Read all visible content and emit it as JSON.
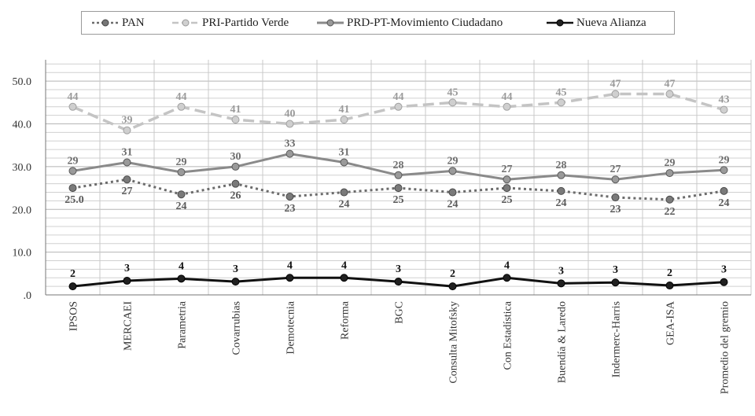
{
  "chart_data": {
    "type": "line",
    "title": "",
    "xlabel": "",
    "ylabel": "",
    "ylim": [
      0,
      55
    ],
    "yticks": [
      ".0",
      "10.0",
      "20.0",
      "30.0",
      "40.0",
      "50.0"
    ],
    "grid": true,
    "legend_position": "top",
    "categories": [
      "IPSOS",
      "MERCAEI",
      "Parametria",
      "Covarrubias",
      "Demotecnia",
      "Reforma",
      "BGC",
      "Consulta Mitofsky",
      "Con Estadística",
      "Buendía & Laredo",
      "Indermerc-Harris",
      "GEA-ISA",
      "Promedio del gremio"
    ],
    "series": [
      {
        "name": "PAN",
        "style": "dotted",
        "color": "#6b6b6b",
        "values": [
          25,
          27,
          23.5,
          26,
          23,
          24,
          25,
          24,
          25,
          24.3,
          22.8,
          22.3,
          24.3
        ],
        "labels": [
          "25.0",
          "27",
          "24",
          "26",
          "23",
          "24",
          "25",
          "24",
          "25",
          "24",
          "23",
          "22",
          "24"
        ]
      },
      {
        "name": "PRI-Partido Verde",
        "style": "dashed",
        "color": "#c4c4c4",
        "values": [
          44,
          38.5,
          44,
          41,
          40,
          41,
          44,
          45,
          44,
          45,
          47,
          47,
          43.3
        ],
        "labels": [
          "44",
          "39",
          "44",
          "41",
          "40",
          "41",
          "44",
          "45",
          "44",
          "45",
          "47",
          "47",
          "43"
        ]
      },
      {
        "name": "PRD-PT-Movimiento Ciudadano",
        "style": "solid",
        "color": "#8a8a8a",
        "values": [
          29,
          31,
          28.7,
          30,
          33,
          31,
          28,
          29,
          27,
          28,
          27,
          28.5,
          29.2
        ],
        "labels": [
          "29",
          "31",
          "29",
          "30",
          "33",
          "31",
          "28",
          "29",
          "27",
          "28",
          "27",
          "29",
          "29"
        ]
      },
      {
        "name": "Nueva Alianza",
        "style": "solid",
        "color": "#111111",
        "values": [
          2,
          3.3,
          3.8,
          3.1,
          4,
          4,
          3.1,
          2,
          4,
          2.7,
          2.9,
          2.2,
          3
        ],
        "labels": [
          "2",
          "3",
          "4",
          "3",
          "4",
          "4",
          "3",
          "2",
          "4",
          "3",
          "3",
          "2",
          "3"
        ]
      }
    ]
  }
}
